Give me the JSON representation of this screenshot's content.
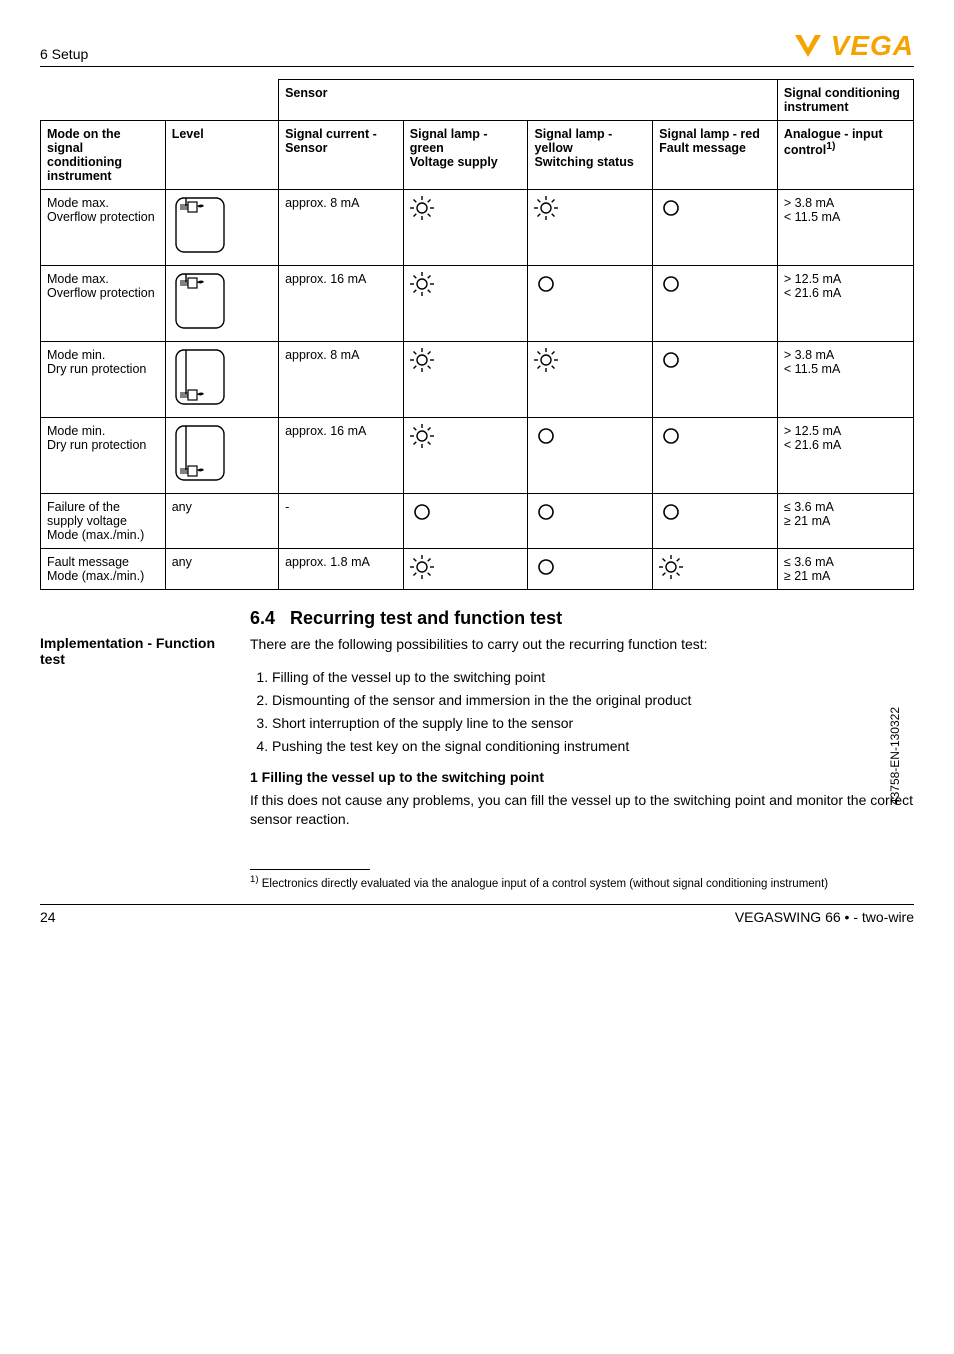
{
  "header": {
    "section": "6 Setup",
    "logo_text": "VEGA",
    "logo_color": "#f5a300"
  },
  "table": {
    "top_headers": {
      "sensor": "Sensor",
      "sig_inst": "Signal conditioning instrument"
    },
    "col_headers": {
      "mode": "Mode on the signal conditioning instrument",
      "level": "Level",
      "sig_cur": "Signal current - Sensor",
      "lamp_green": "Signal lamp - green",
      "lamp_green_sub": "Voltage supply",
      "lamp_yellow": "Signal lamp - yellow",
      "lamp_yellow_sub": "Switching status",
      "lamp_red": "Signal lamp - red",
      "lamp_red_sub": "Fault message",
      "analogue": "Analogue - input control",
      "analogue_sup": "1)"
    },
    "rows": [
      {
        "mode1": "Mode max.",
        "mode2": "Overflow protection",
        "level_icon": "fork-high",
        "cur": "approx. 8 mA",
        "green": "sun",
        "yellow": "sun",
        "red": "ring",
        "ana1": "> 3.8 mA",
        "ana2": "< 11.5 mA"
      },
      {
        "mode1": "Mode max.",
        "mode2": "Overflow protection",
        "level_icon": "fork-high",
        "cur": "approx. 16 mA",
        "green": "sun",
        "yellow": "ring",
        "red": "ring",
        "ana1": "> 12.5 mA",
        "ana2": "< 21.6 mA"
      },
      {
        "mode1": "Mode min.",
        "mode2": "Dry run protection",
        "level_icon": "fork-low",
        "cur": "approx. 8 mA",
        "green": "sun",
        "yellow": "sun",
        "red": "ring",
        "ana1": "> 3.8 mA",
        "ana2": "< 11.5 mA"
      },
      {
        "mode1": "Mode min.",
        "mode2": "Dry run protection",
        "level_icon": "fork-low",
        "cur": "approx. 16 mA",
        "green": "sun",
        "yellow": "ring",
        "red": "ring",
        "ana1": "> 12.5 mA",
        "ana2": "< 21.6 mA"
      },
      {
        "mode1": "Failure of the supply voltage",
        "mode2": "Mode (max./min.)",
        "level_text": "any",
        "cur": "-",
        "green": "ring",
        "yellow": "ring",
        "red": "ring",
        "ana1": "≤ 3.6 mA",
        "ana2": "≥ 21 mA"
      },
      {
        "mode1": "Fault message",
        "mode2": "Mode (max./min.)",
        "level_text": "any",
        "cur": "approx. 1.8 mA",
        "green": "sun",
        "yellow": "ring",
        "red": "sun",
        "ana1": "≤ 3.6 mA",
        "ana2": "≥ 21 mA"
      }
    ]
  },
  "section": {
    "num": "6.4",
    "title": "Recurring test and function test"
  },
  "side_label": "Implementation - Function test",
  "intro": "There are the following possibilities to carry out the recurring function test:",
  "list": [
    "Filling of the vessel up to the switching point",
    "Dismounting of the sensor and immersion in the the original product",
    "Short interruption of the supply line to the sensor",
    "Pushing the test key on the signal conditioning instrument"
  ],
  "sub_header": "1 Filling the vessel up to the switching point",
  "sub_body": "If this does not cause any problems, you can fill the vessel up to the switching point and monitor the correct sensor reaction.",
  "footnote": {
    "marker": "1)",
    "text": "Electronics directly evaluated via the analogue input of a control system (without signal conditioning instrument)"
  },
  "footer": {
    "page": "24",
    "product": "VEGASWING 66 • - two-wire"
  },
  "doc_id": "43758-EN-130322",
  "svg": {
    "sun_stroke": "#000",
    "ring_stroke": "#000",
    "vessel_stroke": "#000",
    "vessel_fill": "none"
  },
  "col_widths": [
    "110",
    "100",
    "110",
    "110",
    "110",
    "110",
    "120"
  ]
}
